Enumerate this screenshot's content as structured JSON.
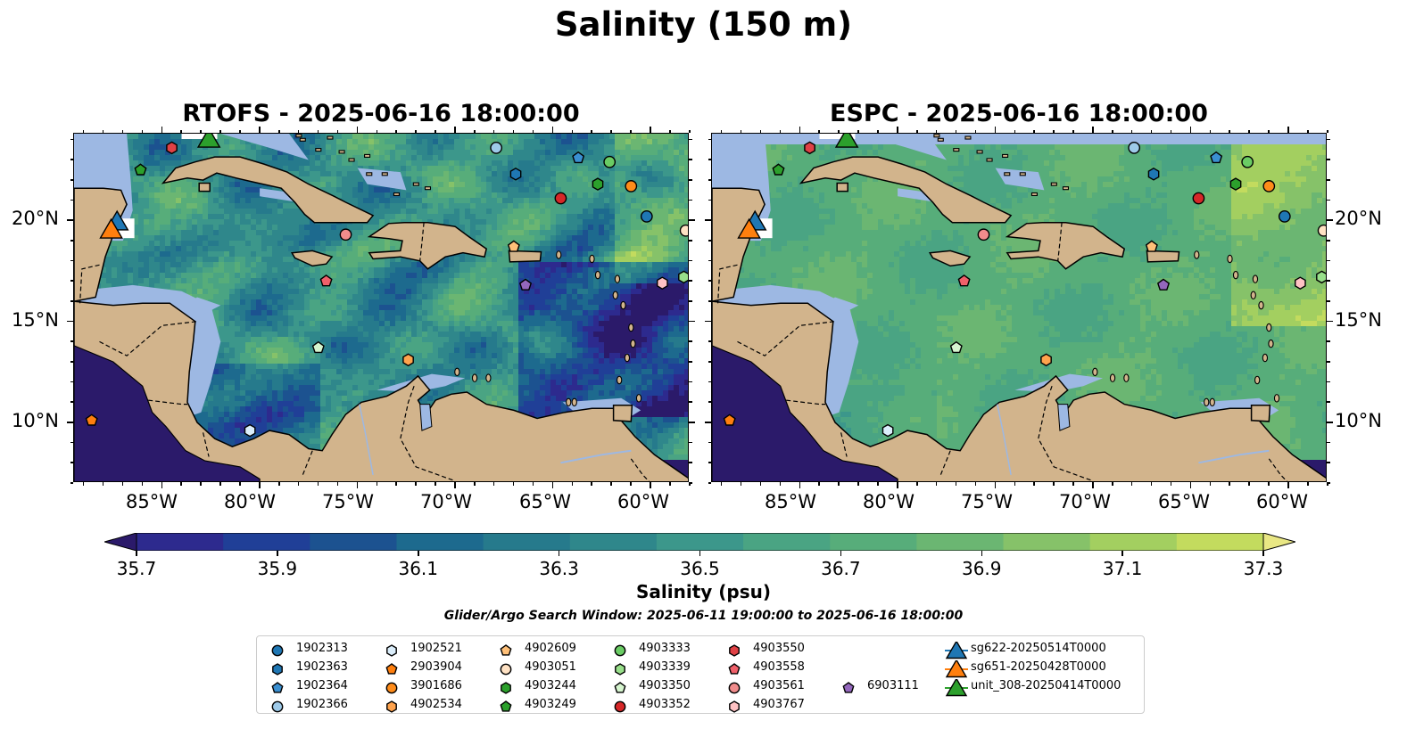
{
  "figure": {
    "title": "Salinity (150 m)",
    "colorbar_label": "Salinity (psu)",
    "search_window": "Glider/Argo Search Window: 2025-06-11 19:00:00 to 2025-06-16 18:00:00"
  },
  "panels": [
    {
      "title": "RTOFS - 2025-06-16 18:00:00"
    },
    {
      "title": "ESPC - 2025-06-16 18:00:00"
    }
  ],
  "axes": {
    "lon_ticks": [
      "85°W",
      "80°W",
      "75°W",
      "70°W",
      "65°W",
      "60°W"
    ],
    "lat_ticks": [
      "20°N",
      "15°N",
      "10°N"
    ],
    "lon_range": [
      -89.5,
      -58.0
    ],
    "lat_range": [
      7.0,
      24.3
    ]
  },
  "colorbar": {
    "min": 35.6,
    "max": 37.4,
    "ticks": [
      "35.7",
      "35.9",
      "36.1",
      "36.3",
      "36.5",
      "36.7",
      "36.9",
      "37.1",
      "37.3"
    ],
    "colors": [
      "#2b1a6a",
      "#2d2a8e",
      "#203f97",
      "#1c5290",
      "#1d6a8e",
      "#267a8c",
      "#2f878b",
      "#3c978b",
      "#4aa483",
      "#57ad7a",
      "#6bb672",
      "#86c269",
      "#a3cf60",
      "#c3db5e",
      "#e9e784"
    ],
    "extend": "both"
  },
  "legend_items": [
    {
      "id": "1902313",
      "marker": "circle",
      "color": "#1f77b4"
    },
    {
      "id": "1902363",
      "marker": "hexagon",
      "color": "#1f77b4"
    },
    {
      "id": "1902364",
      "marker": "pentagon",
      "color": "#3a8fd1"
    },
    {
      "id": "1902366",
      "marker": "circle",
      "color": "#9ecae9"
    },
    {
      "id": "1902521",
      "marker": "hexagon",
      "color": "#dbeefb"
    },
    {
      "id": "2903904",
      "marker": "pentagon",
      "color": "#ff7f0e"
    },
    {
      "id": "3901686",
      "marker": "circle",
      "color": "#ff8c1a"
    },
    {
      "id": "4902534",
      "marker": "hexagon",
      "color": "#ffa34d"
    },
    {
      "id": "4902609",
      "marker": "pentagon",
      "color": "#ffc078"
    },
    {
      "id": "4903051",
      "marker": "circle",
      "color": "#ffe2c4"
    },
    {
      "id": "4903244",
      "marker": "hexagon",
      "color": "#2ca02c"
    },
    {
      "id": "4903249",
      "marker": "pentagon",
      "color": "#2ca02c"
    },
    {
      "id": "4903333",
      "marker": "circle",
      "color": "#6acc64"
    },
    {
      "id": "4903339",
      "marker": "hexagon",
      "color": "#98df8a"
    },
    {
      "id": "4903350",
      "marker": "pentagon",
      "color": "#d6f5cf"
    },
    {
      "id": "4903352",
      "marker": "circle",
      "color": "#d62728"
    },
    {
      "id": "4903550",
      "marker": "hexagon",
      "color": "#e04145"
    },
    {
      "id": "4903558",
      "marker": "pentagon",
      "color": "#f0606a"
    },
    {
      "id": "4903561",
      "marker": "circle",
      "color": "#f08c8c"
    },
    {
      "id": "4903767",
      "marker": "hexagon",
      "color": "#ffc2c4"
    },
    {
      "id": "6903111",
      "marker": "pentagon",
      "color": "#9467bd"
    },
    {
      "id": "sg622-20250514T0000",
      "marker": "triangle",
      "color": "#1f77b4"
    },
    {
      "id": "sg651-20250428T0000",
      "marker": "triangle",
      "color": "#ff7f0e"
    },
    {
      "id": "unit_308-20250414T0000",
      "marker": "triangle",
      "color": "#2ca02c"
    }
  ],
  "map_points": [
    {
      "id": "1902313",
      "lon": -60.2,
      "lat": 20.2
    },
    {
      "id": "1902363",
      "lon": -66.9,
      "lat": 22.3
    },
    {
      "id": "1902364",
      "lon": -63.7,
      "lat": 23.1
    },
    {
      "id": "1902366",
      "lon": -67.9,
      "lat": 23.6
    },
    {
      "id": "1902521",
      "lon": -80.5,
      "lat": 9.6
    },
    {
      "id": "2903904",
      "lon": -88.6,
      "lat": 10.1
    },
    {
      "id": "3901686",
      "lon": -61.0,
      "lat": 21.7
    },
    {
      "id": "4902534",
      "lon": -72.4,
      "lat": 13.1
    },
    {
      "id": "4902609",
      "lon": -67.0,
      "lat": 18.7
    },
    {
      "id": "4903051",
      "lon": -58.2,
      "lat": 19.5
    },
    {
      "id": "4903244",
      "lon": -62.7,
      "lat": 21.8
    },
    {
      "id": "4903249",
      "lon": -86.1,
      "lat": 22.5
    },
    {
      "id": "4903333",
      "lon": -62.1,
      "lat": 22.9
    },
    {
      "id": "4903339",
      "lon": -58.3,
      "lat": 17.2
    },
    {
      "id": "4903350",
      "lon": -77.0,
      "lat": 13.7
    },
    {
      "id": "4903352",
      "lon": -64.6,
      "lat": 21.1
    },
    {
      "id": "4903550",
      "lon": -84.5,
      "lat": 23.6
    },
    {
      "id": "4903558",
      "lon": -76.6,
      "lat": 17.0
    },
    {
      "id": "4903561",
      "lon": -75.6,
      "lat": 19.3
    },
    {
      "id": "4903767",
      "lon": -59.4,
      "lat": 16.9
    },
    {
      "id": "6903111",
      "lon": -66.4,
      "lat": 16.8
    },
    {
      "id": "sg622-20250514T0000",
      "lon": -87.3,
      "lat": 19.9
    },
    {
      "id": "sg651-20250428T0000",
      "lon": -87.6,
      "lat": 19.5
    },
    {
      "id": "unit_308-20250414T0000",
      "lon": -82.6,
      "lat": 24.0
    }
  ]
}
